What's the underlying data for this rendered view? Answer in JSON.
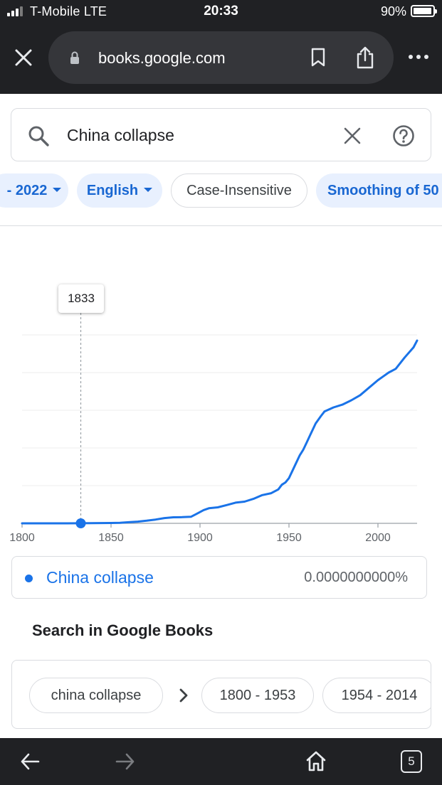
{
  "status_bar": {
    "carrier": "T-Mobile  LTE",
    "time": "20:33",
    "battery": "90%"
  },
  "browser": {
    "url": "books.google.com",
    "tab_count": "5"
  },
  "search": {
    "query": "China collapse"
  },
  "filters": [
    {
      "label": "- 2022",
      "style": "blue",
      "has_caret": true
    },
    {
      "label": "English",
      "style": "blue",
      "has_caret": true
    },
    {
      "label": "Case-Insensitive",
      "style": "outline",
      "has_caret": false
    },
    {
      "label": "Smoothing of 50",
      "style": "blue",
      "has_caret": false
    }
  ],
  "chart_data": {
    "type": "line",
    "title": "",
    "xlabel": "",
    "ylabel": "",
    "xlim": [
      1800,
      2022
    ],
    "ylim": [
      0,
      100
    ],
    "x_ticks": [
      "1800",
      "1850",
      "1900",
      "1950",
      "2000"
    ],
    "grid": true,
    "color": "#1a73e8",
    "hover": {
      "label": "1833",
      "x": 1833,
      "y": 0
    },
    "series": [
      {
        "name": "China collapse",
        "x": [
          1800,
          1825,
          1850,
          1855,
          1860,
          1865,
          1870,
          1875,
          1880,
          1885,
          1890,
          1895,
          1898,
          1902,
          1905,
          1910,
          1915,
          1920,
          1925,
          1930,
          1935,
          1940,
          1944,
          1946,
          1948,
          1950,
          1952,
          1954,
          1956,
          1958,
          1960,
          1962,
          1965,
          1968,
          1970,
          1975,
          1980,
          1985,
          1990,
          1995,
          2000,
          2003,
          2006,
          2010,
          2015,
          2020,
          2022
        ],
        "y": [
          0,
          0,
          0.2,
          0.3,
          0.6,
          0.9,
          1.4,
          2,
          2.8,
          3.2,
          3.3,
          3.5,
          5,
          7,
          8,
          8.5,
          9.7,
          11,
          11.5,
          13,
          15,
          16,
          18,
          20.5,
          21.7,
          24,
          28,
          32,
          36,
          39,
          43,
          47,
          53,
          57,
          59.4,
          61.5,
          63,
          65.3,
          68,
          72,
          76,
          78,
          80,
          82,
          88,
          93.4,
          97
        ]
      }
    ]
  },
  "legend": {
    "value": "0.0000000000%"
  },
  "books": {
    "title": "Search in Google Books",
    "chips": [
      "china collapse",
      "1800 - 1953",
      "1954 - 2014"
    ]
  },
  "icons": {
    "close_tab": "close-icon",
    "lock": "lock-icon",
    "bookmark": "bookmark-icon",
    "share": "share-icon",
    "more": "more-icon",
    "search": "search-icon",
    "clear": "clear-icon",
    "help": "help-icon",
    "chevron": "chevron-right-icon",
    "back": "back-arrow-icon",
    "forward": "forward-arrow-icon",
    "home": "home-icon"
  }
}
